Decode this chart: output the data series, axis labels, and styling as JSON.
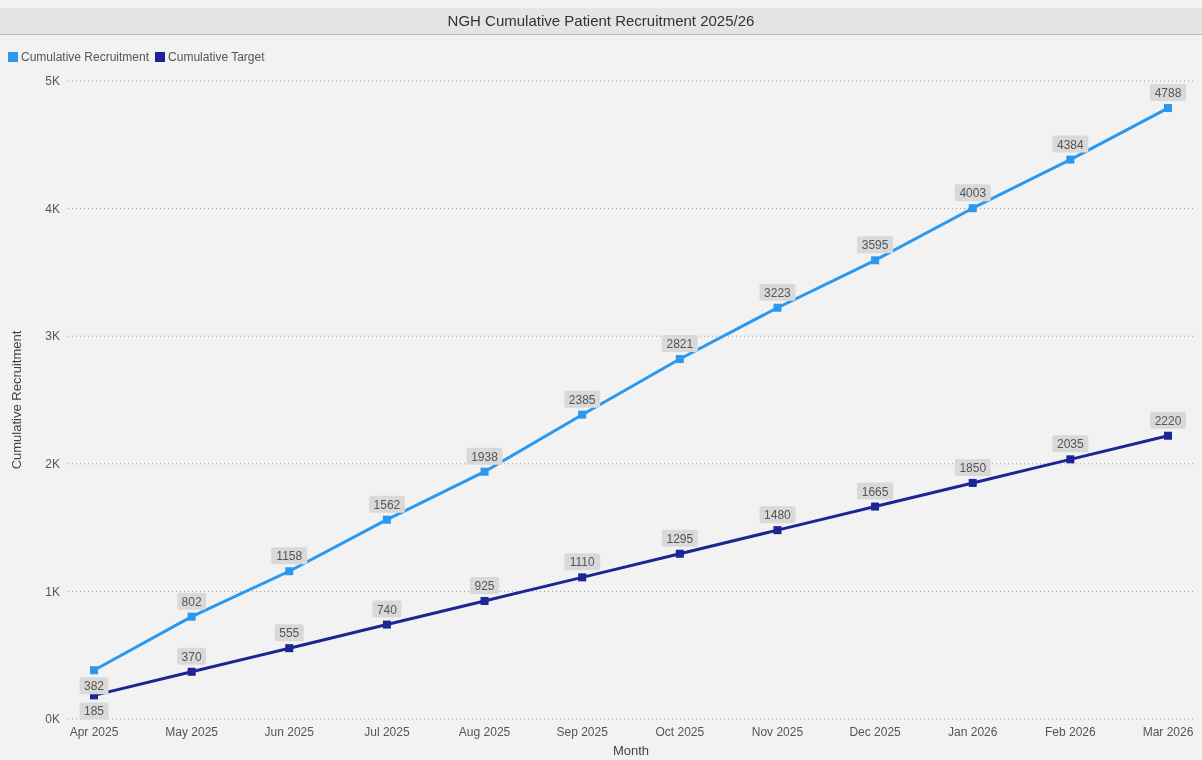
{
  "chart_data": {
    "type": "line",
    "title": "NGH Cumulative Patient Recruitment 2025/26",
    "xlabel": "Month",
    "ylabel": "Cumulative Recruitment",
    "categories": [
      "Apr 2025",
      "May 2025",
      "Jun 2025",
      "Jul 2025",
      "Aug 2025",
      "Sep 2025",
      "Oct 2025",
      "Nov 2025",
      "Dec 2025",
      "Jan 2026",
      "Feb 2026",
      "Mar 2026"
    ],
    "series": [
      {
        "name": "Cumulative Recruitment",
        "color": "#2b98f0",
        "values": [
          382,
          802,
          1158,
          1562,
          1938,
          2385,
          2821,
          3223,
          3595,
          4003,
          4384,
          4788
        ]
      },
      {
        "name": "Cumulative Target",
        "color": "#1c2594",
        "values": [
          185,
          370,
          555,
          740,
          925,
          1110,
          1295,
          1480,
          1665,
          1850,
          2035,
          2220
        ]
      }
    ],
    "ylim": [
      0,
      5000
    ],
    "yticks": [
      {
        "value": 0,
        "label": "0K"
      },
      {
        "value": 1000,
        "label": "1K"
      },
      {
        "value": 2000,
        "label": "2K"
      },
      {
        "value": 3000,
        "label": "3K"
      },
      {
        "value": 4000,
        "label": "4K"
      },
      {
        "value": 5000,
        "label": "5K"
      }
    ],
    "grid": "y",
    "legend": "top left",
    "marker": "square",
    "line_style": "solid",
    "data_labels": true
  }
}
